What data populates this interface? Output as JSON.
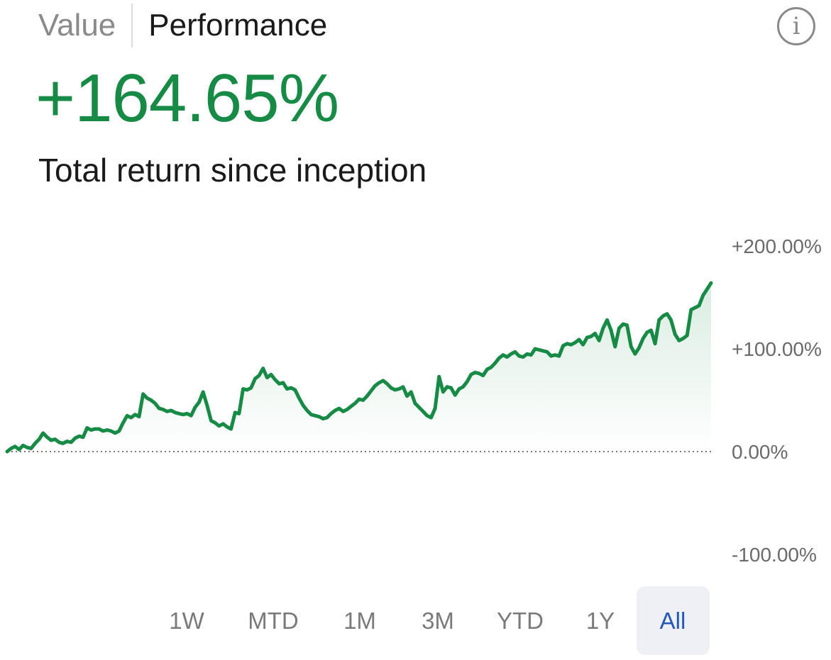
{
  "tabs": {
    "value_label": "Value",
    "performance_label": "Performance",
    "active": "Performance"
  },
  "info_icon": "info-icon",
  "summary": {
    "total_return": "+164.65%",
    "caption": "Total return since inception"
  },
  "colors": {
    "positive": "#178a45",
    "active_range_text": "#2458b5",
    "active_range_bg": "#eef0f6"
  },
  "chart_data": {
    "type": "area",
    "title": "",
    "xlabel": "",
    "ylabel": "",
    "ylim": [
      -100,
      200
    ],
    "y_ticks": [
      "+200.00%",
      "+100.00%",
      "0.00%",
      "-100.00%"
    ],
    "y_tick_values": [
      200,
      100,
      0,
      -100
    ],
    "baseline": 0,
    "grid": false,
    "series": [
      {
        "values": [
          0,
          3,
          5,
          2,
          6,
          4,
          3,
          8,
          12,
          18,
          14,
          11,
          12,
          9,
          8,
          10,
          9,
          13,
          15,
          14,
          23,
          21,
          22,
          22,
          20,
          21,
          20,
          18,
          20,
          28,
          35,
          33,
          36,
          34,
          56,
          52,
          50,
          47,
          42,
          41,
          39,
          40,
          38,
          37,
          36,
          37,
          35,
          43,
          48,
          58,
          45,
          30,
          28,
          25,
          27,
          24,
          22,
          38,
          37,
          61,
          60,
          62,
          71,
          74,
          81,
          72,
          75,
          70,
          66,
          67,
          61,
          62,
          60,
          52,
          45,
          40,
          36,
          35,
          34,
          32,
          33,
          37,
          40,
          42,
          39,
          41,
          44,
          47,
          51,
          50,
          54,
          59,
          64,
          67,
          69,
          66,
          62,
          60,
          61,
          63,
          54,
          58,
          47,
          43,
          39,
          35,
          33,
          42,
          73,
          58,
          63,
          62,
          55,
          61,
          63,
          68,
          75,
          77,
          76,
          74,
          80,
          82,
          86,
          91,
          94,
          92,
          95,
          97,
          93,
          92,
          95,
          94,
          100,
          99,
          98,
          97,
          93,
          94,
          93,
          103,
          105,
          104,
          106,
          109,
          104,
          111,
          112,
          115,
          108,
          120,
          128,
          118,
          102,
          120,
          124,
          123,
          102,
          95,
          101,
          110,
          116,
          118,
          105,
          128,
          132,
          134,
          128,
          114,
          108,
          110,
          113,
          138,
          140,
          142,
          152,
          158,
          164
        ]
      }
    ]
  },
  "time_ranges": {
    "items": [
      "1W",
      "MTD",
      "1M",
      "3M",
      "YTD",
      "1Y",
      "All"
    ],
    "selected": "All"
  }
}
